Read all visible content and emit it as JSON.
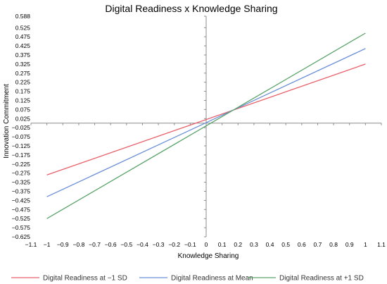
{
  "chart_data": {
    "type": "line",
    "title": "Digital Readiness x Knowledge Sharing",
    "xlabel": "Knowledge Sharing",
    "ylabel": "Innovation Commitment",
    "xlim": [
      -1.1,
      1.1
    ],
    "ylim": [
      -0.625,
      0.588
    ],
    "x_ticks": [
      "−1.1",
      "−1",
      "−0.9",
      "−0.8",
      "−0.7",
      "−0.6",
      "−0.5",
      "−0.4",
      "−0.3",
      "−0.2",
      "−0.1",
      "0",
      "0.1",
      "0.2",
      "0.3",
      "0.4",
      "0.5",
      "0.6",
      "0.7",
      "0.8",
      "0.9",
      "1",
      "1.1"
    ],
    "y_ticks": [
      "0.588",
      "0.525",
      "0.475",
      "0.425",
      "0.375",
      "0.325",
      "0.275",
      "0.225",
      "0.175",
      "0.125",
      "0.075",
      "0.025",
      "−0.025",
      "−0.075",
      "−0.125",
      "−0.175",
      "−0.225",
      "−0.275",
      "−0.325",
      "−0.375",
      "−0.425",
      "−0.475",
      "−0.525",
      "−0.575",
      "−0.625"
    ],
    "grid": false,
    "legend_position": "bottom",
    "series": [
      {
        "name": "Digital Readiness at −1 SD",
        "color": "#e8606a",
        "x": [
          -1,
          1
        ],
        "y": [
          -0.285,
          0.325
        ]
      },
      {
        "name": "Digital Readiness at Mean",
        "color": "#6a8fd8",
        "x": [
          -1,
          1
        ],
        "y": [
          -0.405,
          0.41
        ]
      },
      {
        "name": "Digital Readiness at +1 SD",
        "color": "#5aa46a",
        "x": [
          -1,
          1
        ],
        "y": [
          -0.525,
          0.495
        ]
      }
    ]
  }
}
